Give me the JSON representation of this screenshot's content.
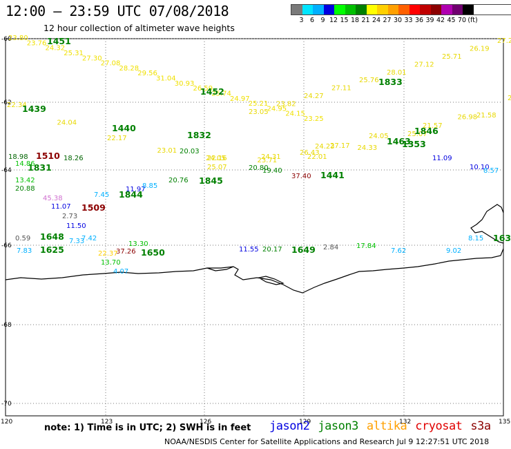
{
  "header": {
    "title": "12:00 – 23:59 UTC 07/08/2018",
    "subtitle": "12 hour collection of altimeter wave heights"
  },
  "legend": {
    "labels": [
      "3",
      "6",
      "9",
      "12",
      "15",
      "18",
      "21",
      "24",
      "27",
      "30",
      "33",
      "36",
      "39",
      "42",
      "45",
      "70",
      "(ft)"
    ],
    "colors": [
      "#7a7a7a",
      "#00e5ff",
      "#00b0ff",
      "#0000e0",
      "#00ff00",
      "#00c000",
      "#008000",
      "#ffff00",
      "#ffd000",
      "#ffa000",
      "#ff6000",
      "#ff0000",
      "#c00000",
      "#8b0000",
      "#b000b0",
      "#700070",
      "#000000"
    ]
  },
  "axes": {
    "lat_labels": [
      "-60",
      "-62",
      "-64",
      "-66",
      "-68",
      "-70"
    ],
    "lon_labels": [
      "120",
      "123",
      "126",
      "129",
      "132",
      "135"
    ]
  },
  "tracks": [
    {
      "name": "track-a",
      "color": "#f0e000",
      "labels": [
        "23.80",
        "23.76",
        "24.32",
        "25.31",
        "27.30",
        "27.08",
        "28.28",
        "29.56",
        "31.04",
        "30.93",
        "26.59",
        "25.74",
        "24.97",
        "25.21",
        "24.95",
        "24.15",
        "23.25"
      ],
      "times": [
        "1451",
        "1452"
      ]
    },
    {
      "name": "track-b",
      "color": "#e8d800",
      "labels": [
        "27.29",
        "26.19",
        "25.71",
        "27.12",
        "28.01",
        "25.76",
        "27.11",
        "24.27",
        "23.82",
        "23.05"
      ],
      "times": [
        "1833"
      ]
    },
    {
      "name": "track-c",
      "color": "#e8d800",
      "labels": [
        "22.34",
        "24.04",
        "22.17",
        "23.01",
        "22.16",
        "23.71",
        "22.01",
        "24.33",
        "25.07",
        "26.98",
        "22.28"
      ],
      "times": [
        "1439",
        "1440",
        "1832"
      ]
    },
    {
      "name": "track-d",
      "color": "#e8d800",
      "labels": [
        "25.07",
        "24.31",
        "24.23",
        "24.05",
        "21.57",
        "21.58"
      ],
      "times": [
        "1846"
      ]
    }
  ],
  "times_labels": [
    {
      "text": "1451",
      "color": "#008000"
    },
    {
      "text": "1452",
      "color": "#008000"
    },
    {
      "text": "1833",
      "color": "#008000"
    },
    {
      "text": "1439",
      "color": "#008000"
    },
    {
      "text": "1440",
      "color": "#008000"
    },
    {
      "text": "1832",
      "color": "#008000"
    },
    {
      "text": "1846",
      "color": "#008000"
    },
    {
      "text": "1463",
      "color": "#008000"
    },
    {
      "text": "1353",
      "color": "#008000"
    },
    {
      "text": "1510",
      "color": "#8b0000"
    },
    {
      "text": "1831",
      "color": "#008000"
    },
    {
      "text": "1845",
      "color": "#008000"
    },
    {
      "text": "1441",
      "color": "#008000"
    },
    {
      "text": "1844",
      "color": "#008000"
    },
    {
      "text": "1509",
      "color": "#8b0000"
    },
    {
      "text": "1648",
      "color": "#008000"
    },
    {
      "text": "1625",
      "color": "#008000"
    },
    {
      "text": "1650",
      "color": "#008000"
    },
    {
      "text": "1649",
      "color": "#008000"
    },
    {
      "text": "163",
      "color": "#008000"
    }
  ],
  "value_labels": [
    {
      "text": "18.98",
      "color": "#006400"
    },
    {
      "text": "18.26",
      "color": "#006400"
    },
    {
      "text": "14.86",
      "color": "#00c000"
    },
    {
      "text": "13.42",
      "color": "#00c000"
    },
    {
      "text": "20.88",
      "color": "#008000"
    },
    {
      "text": "45.38",
      "color": "#d070d0"
    },
    {
      "text": "11.97",
      "color": "#0000e0"
    },
    {
      "text": "11.07",
      "color": "#0000e0"
    },
    {
      "text": "2.73",
      "color": "#555555"
    },
    {
      "text": "11.50",
      "color": "#0000e0"
    },
    {
      "text": "8.85",
      "color": "#00b0ff"
    },
    {
      "text": "7.45",
      "color": "#00b0ff"
    },
    {
      "text": "20.76",
      "color": "#008000"
    },
    {
      "text": "20.80",
      "color": "#008000"
    },
    {
      "text": "19.40",
      "color": "#008000"
    },
    {
      "text": "37.40",
      "color": "#8b0000"
    },
    {
      "text": "20.03",
      "color": "#008000"
    },
    {
      "text": "24.05",
      "color": "#e8d800"
    },
    {
      "text": "11.09",
      "color": "#0000e0"
    },
    {
      "text": "10.10",
      "color": "#0000e0"
    },
    {
      "text": "8.57",
      "color": "#00b0ff"
    },
    {
      "text": "0.59",
      "color": "#555555"
    },
    {
      "text": "7.42",
      "color": "#00b0ff"
    },
    {
      "text": "7.33",
      "color": "#00b0ff"
    },
    {
      "text": "7.83",
      "color": "#00b0ff"
    },
    {
      "text": "37.26",
      "color": "#8b0000"
    },
    {
      "text": "13.30",
      "color": "#00c000"
    },
    {
      "text": "11.55",
      "color": "#0000e0"
    },
    {
      "text": "20.17",
      "color": "#008000"
    },
    {
      "text": "17.84",
      "color": "#00c000"
    },
    {
      "text": "2.84",
      "color": "#555555"
    },
    {
      "text": "7.62",
      "color": "#00b0ff"
    },
    {
      "text": "9.02",
      "color": "#00b0ff"
    },
    {
      "text": "8.15",
      "color": "#00b0ff"
    },
    {
      "text": "13.70",
      "color": "#00c000"
    },
    {
      "text": "4.07",
      "color": "#00b0ff"
    },
    {
      "text": "22.37",
      "color": "#ffd000"
    },
    {
      "text": "27.17",
      "color": "#e8d800"
    },
    {
      "text": "26.43",
      "color": "#e8d800"
    }
  ],
  "footer": {
    "note": "note: 1) Time is in UTC; 2) SWH is in feet",
    "satellites": [
      {
        "name": "jason2",
        "color": "#0000e0"
      },
      {
        "name": "jason3",
        "color": "#008000"
      },
      {
        "name": "altika",
        "color": "#ffa000"
      },
      {
        "name": "cryosat",
        "color": "#e00000"
      },
      {
        "name": "s3a",
        "color": "#8b0000"
      }
    ],
    "credit": "NOAA/NESDIS Center for Satellite Applications and Research    Jul  9 12:27:51 UTC 2018"
  }
}
